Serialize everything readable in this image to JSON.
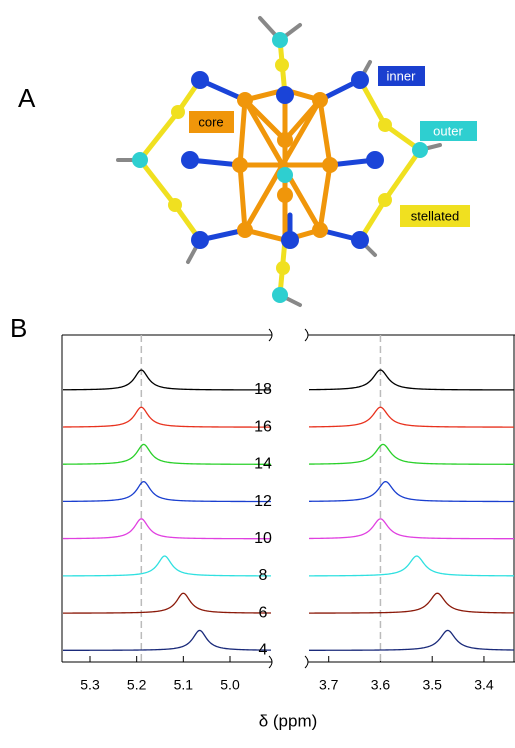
{
  "panel_a": {
    "label": "A",
    "labels": {
      "inner": "inner",
      "outer": "outer",
      "core": "core",
      "stellated": "stellated"
    }
  },
  "chart_data": {
    "type": "nmr-stack",
    "panel_label": "B",
    "x_label": "δ (ppm)",
    "panels": [
      {
        "xlim": [
          5.36,
          4.91
        ],
        "xticks": [
          5.3,
          5.2,
          5.1,
          {
            "value": 5.0,
            "label": "5.0"
          }
        ],
        "ref_line": 5.19
      },
      {
        "xlim": [
          3.74,
          3.34
        ],
        "xticks": [
          3.7,
          3.6,
          3.5,
          3.4
        ],
        "ref_line": 3.6
      }
    ],
    "series": [
      {
        "name": "18",
        "color": "#000000",
        "peaks": [
          5.19,
          3.6
        ]
      },
      {
        "name": "16",
        "color": "#e8321e",
        "peaks": [
          5.19,
          3.6
        ]
      },
      {
        "name": "14",
        "color": "#2ad02a",
        "peaks": [
          5.185,
          3.595
        ]
      },
      {
        "name": "12",
        "color": "#1a3fcf",
        "peaks": [
          5.185,
          3.59
        ]
      },
      {
        "name": "10",
        "color": "#e040e0",
        "peaks": [
          5.19,
          3.6
        ]
      },
      {
        "name": "8",
        "color": "#30e0e0",
        "peaks": [
          5.14,
          3.53
        ]
      },
      {
        "name": "6",
        "color": "#8b1a0a",
        "peaks": [
          5.1,
          3.49
        ]
      },
      {
        "name": "4",
        "color": "#1a2a7a",
        "peaks": [
          5.065,
          3.47
        ]
      }
    ]
  }
}
